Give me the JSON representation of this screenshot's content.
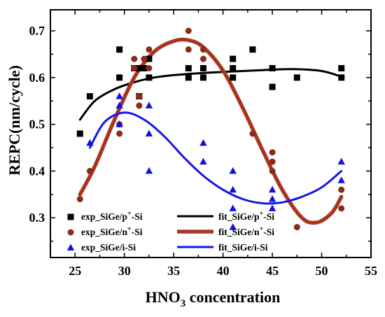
{
  "chart_data": {
    "type": "scatter",
    "xlabel_main": "HNO",
    "xlabel_sub": "3",
    "xlabel_rest": " concentration",
    "ylabel": "REPC(nm/cycle)",
    "xlim": [
      22.5,
      55
    ],
    "ylim": [
      0.215,
      0.745
    ],
    "xticks": [
      25,
      30,
      35,
      40,
      45,
      50,
      55
    ],
    "yticks": [
      0.3,
      0.4,
      0.5,
      0.6,
      0.7
    ],
    "ytick_labels": [
      "0.3",
      "0.4",
      "0.5",
      "0.6",
      "0.7"
    ],
    "grid": false,
    "legend_placement": "bottom",
    "series": [
      {
        "name": "exp_SiGe/p+-Si",
        "label_pre": "exp_SiGe/p",
        "label_sup": "+",
        "label_post": "-Si",
        "kind": "points",
        "marker": "square",
        "color": "#000000",
        "points": [
          [
            25.5,
            0.48
          ],
          [
            26.5,
            0.56
          ],
          [
            29.5,
            0.66
          ],
          [
            29.5,
            0.6
          ],
          [
            31,
            0.62
          ],
          [
            31.5,
            0.62
          ],
          [
            31.5,
            0.56
          ],
          [
            32,
            0.62
          ],
          [
            32.5,
            0.64
          ],
          [
            32.5,
            0.6
          ],
          [
            36.5,
            0.62
          ],
          [
            36.5,
            0.6
          ],
          [
            38,
            0.62
          ],
          [
            38,
            0.6
          ],
          [
            41,
            0.64
          ],
          [
            41,
            0.62
          ],
          [
            41,
            0.6
          ],
          [
            43,
            0.66
          ],
          [
            45,
            0.62
          ],
          [
            45,
            0.58
          ],
          [
            47.5,
            0.6
          ],
          [
            52,
            0.62
          ],
          [
            52,
            0.6
          ]
        ]
      },
      {
        "name": "exp_SiGe/n+-Si",
        "label_pre": "exp_SiGe/n",
        "label_sup": "+",
        "label_post": "-Si",
        "kind": "points",
        "marker": "circle",
        "color": "#8b2c14",
        "points": [
          [
            25.5,
            0.34
          ],
          [
            26.5,
            0.4
          ],
          [
            29.5,
            0.48
          ],
          [
            29.5,
            0.5
          ],
          [
            31,
            0.64
          ],
          [
            31,
            0.62
          ],
          [
            31.5,
            0.56
          ],
          [
            31.5,
            0.54
          ],
          [
            32,
            0.64
          ],
          [
            32.5,
            0.66
          ],
          [
            32.5,
            0.62
          ],
          [
            36.5,
            0.7
          ],
          [
            36.5,
            0.66
          ],
          [
            38,
            0.66
          ],
          [
            38,
            0.64
          ],
          [
            43,
            0.48
          ],
          [
            45,
            0.44
          ],
          [
            45,
            0.42
          ],
          [
            45,
            0.4
          ],
          [
            47.5,
            0.28
          ],
          [
            52,
            0.36
          ],
          [
            52,
            0.32
          ]
        ]
      },
      {
        "name": "exp_SiGe/i-Si",
        "label_pre": "exp_SiGe/i-Si",
        "label_sup": "",
        "label_post": "",
        "kind": "points",
        "marker": "triangle",
        "color": "#1010e0",
        "points": [
          [
            26.5,
            0.46
          ],
          [
            29.5,
            0.56
          ],
          [
            29.5,
            0.54
          ],
          [
            29.5,
            0.5
          ],
          [
            32.5,
            0.54
          ],
          [
            32.5,
            0.48
          ],
          [
            32.5,
            0.4
          ],
          [
            38,
            0.46
          ],
          [
            38,
            0.42
          ],
          [
            41,
            0.4
          ],
          [
            41,
            0.36
          ],
          [
            41,
            0.32
          ],
          [
            41,
            0.28
          ],
          [
            45,
            0.36
          ],
          [
            45,
            0.34
          ],
          [
            45,
            0.32
          ],
          [
            52,
            0.42
          ],
          [
            52,
            0.38
          ]
        ]
      },
      {
        "name": "fit_SiGe/p+-Si",
        "label_pre": "fit_SiGe/p",
        "label_sup": "+",
        "label_post": "-Si",
        "kind": "line",
        "color": "#000000",
        "width": 3,
        "points": [
          [
            25.5,
            0.51
          ],
          [
            27,
            0.55
          ],
          [
            29,
            0.575
          ],
          [
            31,
            0.59
          ],
          [
            33,
            0.6
          ],
          [
            36,
            0.607
          ],
          [
            40,
            0.612
          ],
          [
            44,
            0.616
          ],
          [
            47,
            0.618
          ],
          [
            50,
            0.614
          ],
          [
            52,
            0.602
          ]
        ]
      },
      {
        "name": "fit_SiGe/n+-Si",
        "label_pre": "fit_SiGe/n",
        "label_sup": "+",
        "label_post": "-Si",
        "kind": "line",
        "color": "#c02a0a",
        "outline": "#8b4a42",
        "width": 3,
        "points": [
          [
            25.5,
            0.35
          ],
          [
            27,
            0.41
          ],
          [
            29,
            0.51
          ],
          [
            31,
            0.6
          ],
          [
            33,
            0.655
          ],
          [
            35,
            0.678
          ],
          [
            36.5,
            0.68
          ],
          [
            38,
            0.665
          ],
          [
            40,
            0.615
          ],
          [
            42,
            0.535
          ],
          [
            44,
            0.445
          ],
          [
            46,
            0.36
          ],
          [
            48,
            0.3
          ],
          [
            49.5,
            0.29
          ],
          [
            51,
            0.31
          ],
          [
            52,
            0.345
          ]
        ]
      },
      {
        "name": "fit_SiGe/i-Si",
        "label_pre": "fit_SiGe/i-Si",
        "label_sup": "",
        "label_post": "",
        "kind": "line",
        "color": "#1515ea",
        "width": 3,
        "points": [
          [
            26.5,
            0.45
          ],
          [
            28,
            0.505
          ],
          [
            30,
            0.525
          ],
          [
            32,
            0.51
          ],
          [
            34,
            0.475
          ],
          [
            36,
            0.43
          ],
          [
            38,
            0.39
          ],
          [
            40,
            0.36
          ],
          [
            42,
            0.34
          ],
          [
            44,
            0.331
          ],
          [
            46,
            0.333
          ],
          [
            48,
            0.345
          ],
          [
            50,
            0.365
          ],
          [
            52,
            0.4
          ]
        ]
      }
    ]
  }
}
